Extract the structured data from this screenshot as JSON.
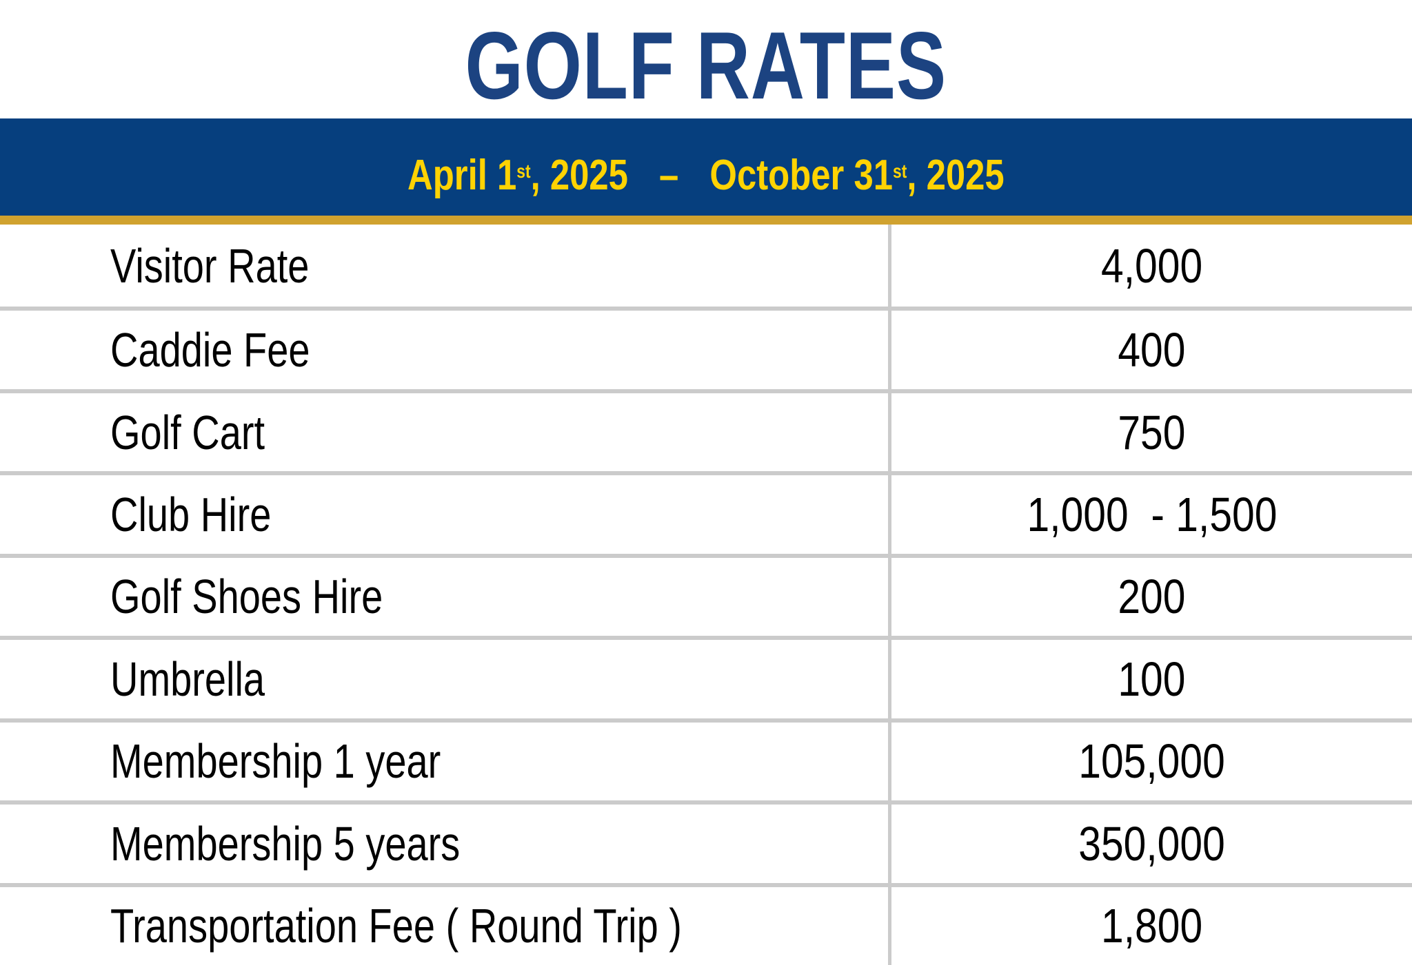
{
  "title": "GOLF RATES",
  "banner": {
    "start_date": "April 1",
    "start_ordinal": "st",
    "start_year": ", 2025",
    "separator": "–",
    "end_date": "October 31",
    "end_ordinal": "st",
    "end_year": ", 2025"
  },
  "rates_table": {
    "rows": [
      {
        "label": "Visitor Rate",
        "value": "4,000"
      },
      {
        "label": "Caddie Fee",
        "value": "400"
      },
      {
        "label": "Golf Cart",
        "value": "750"
      },
      {
        "label": "Club Hire",
        "value": "1,000  - 1,500"
      },
      {
        "label": "Golf Shoes Hire",
        "value": "200"
      },
      {
        "label": "Umbrella",
        "value": "100"
      },
      {
        "label": "Membership 1 year",
        "value": "105,000"
      },
      {
        "label": "Membership 5 years",
        "value": "350,000"
      },
      {
        "label": "Transportation Fee ( Round Trip )",
        "value": "1,800"
      }
    ]
  },
  "colors": {
    "title_blue": "#1c4381",
    "banner_navy": "#063f7e",
    "banner_yellow": "#ffd303",
    "gold_bar": "#d0a22f",
    "divider_gray": "#cbcbcb",
    "row_text": "#010101"
  }
}
